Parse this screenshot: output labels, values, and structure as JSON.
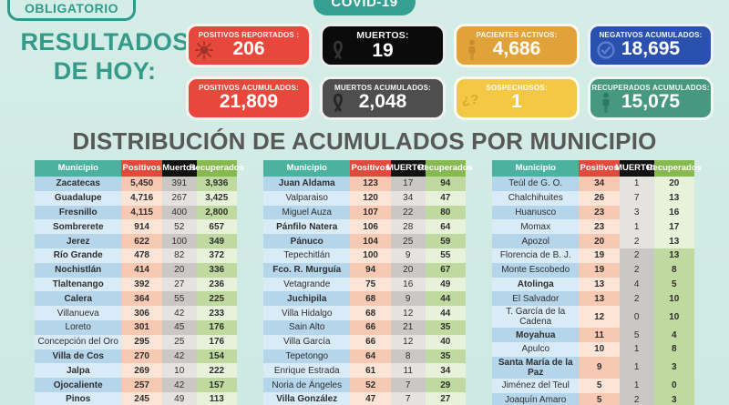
{
  "badges": {
    "obligatorio": "OBLIGATORIO",
    "covid": "COVID-19"
  },
  "header": {
    "results_line1": "RESULTADOS",
    "results_line2": "DE HOY:"
  },
  "section_title": "DISTRIBUCIÓN DE ACUMULADOS POR MUNICIPIO",
  "cards": [
    {
      "id": "positivos-reportados",
      "label": "POSITIVOS REPORTADOS :",
      "value": "206",
      "bg": "#e8483b",
      "icon": "virus",
      "icon_color": "#a53227"
    },
    {
      "id": "muertos",
      "label": "MUERTOS:",
      "value": "19",
      "bg": "#0b0b0b",
      "icon": "ribbon",
      "icon_color": "#343434",
      "label_size": "10.5px"
    },
    {
      "id": "pacientes-activos",
      "label": "PACIENTES ACTIVOS:",
      "value": "4,686",
      "bg": "#e2a23a",
      "icon": "person",
      "icon_color": "#c78c2c"
    },
    {
      "id": "negativos-acumulados",
      "label": "NEGATIVOS ACUMULADOS:",
      "value": "18,695",
      "bg": "#2b51ae",
      "icon": "check-circle",
      "icon_color": "#5c7ed2"
    },
    {
      "id": "positivos-acumulados",
      "label": "POSITIVOS ACUMULADOS:",
      "value": "21,809",
      "bg": "#e8483b"
    },
    {
      "id": "muertos-acumulados",
      "label": "MUERTOS ACUMULADOS:",
      "value": "2,048",
      "bg": "#4e4e4e",
      "icon": "ribbon",
      "icon_color": "#262626"
    },
    {
      "id": "sospechosos",
      "label": "SOSPECHOSOS:",
      "value": "1",
      "bg": "#f3c845",
      "icon": "question",
      "icon_color": "#d9ab21"
    },
    {
      "id": "recuperados-acumulados",
      "label": "RECUPERADOS ACUMULADOS:",
      "value": "15,075",
      "bg": "#46997e",
      "icon": "person",
      "icon_color": "#2d7a62"
    }
  ],
  "tables": [
    {
      "headers": [
        "Municipio",
        "Positivos",
        "Muertos",
        "Recuperados"
      ],
      "rows": [
        {
          "name": "Zacatecas",
          "pos": "5,450",
          "mue": "391",
          "rec": "3,936",
          "bold": true
        },
        {
          "name": "Guadalupe",
          "pos": "4,716",
          "mue": "267",
          "rec": "3,425",
          "bold": true
        },
        {
          "name": "Fresnillo",
          "pos": "4,115",
          "mue": "400",
          "rec": "2,800",
          "bold": true
        },
        {
          "name": "Sombrerete",
          "pos": "914",
          "mue": "52",
          "rec": "657",
          "bold": true
        },
        {
          "name": "Jerez",
          "pos": "622",
          "mue": "100",
          "rec": "349",
          "bold": true
        },
        {
          "name": "Río Grande",
          "pos": "478",
          "mue": "82",
          "rec": "372",
          "bold": true
        },
        {
          "name": "Nochistlán",
          "pos": "414",
          "mue": "20",
          "rec": "336",
          "bold": true
        },
        {
          "name": "Tlaltenango",
          "pos": "392",
          "mue": "27",
          "rec": "236",
          "bold": true
        },
        {
          "name": "Calera",
          "pos": "364",
          "mue": "55",
          "rec": "225",
          "bold": true
        },
        {
          "name": "Villanueva",
          "pos": "306",
          "mue": "42",
          "rec": "233",
          "bold": false
        },
        {
          "name": "Loreto",
          "pos": "301",
          "mue": "45",
          "rec": "176",
          "bold": false
        },
        {
          "name": "Concepción del Oro",
          "pos": "295",
          "mue": "25",
          "rec": "176",
          "bold": false
        },
        {
          "name": "Villa de Cos",
          "pos": "270",
          "mue": "42",
          "rec": "154",
          "bold": true
        },
        {
          "name": "Jalpa",
          "pos": "269",
          "mue": "10",
          "rec": "222",
          "bold": true
        },
        {
          "name": "Ojocaliente",
          "pos": "257",
          "mue": "42",
          "rec": "157",
          "bold": true
        },
        {
          "name": "Pinos",
          "pos": "245",
          "mue": "49",
          "rec": "113",
          "bold": true
        }
      ]
    },
    {
      "headers": [
        "Municipio",
        "Positivos",
        "MUERTOS",
        "Recuperados"
      ],
      "rows": [
        {
          "name": "Juan Aldama",
          "pos": "123",
          "mue": "17",
          "rec": "94",
          "bold": true
        },
        {
          "name": "Valparaiso",
          "pos": "120",
          "mue": "34",
          "rec": "47",
          "bold": false
        },
        {
          "name": "Miguel Auza",
          "pos": "107",
          "mue": "22",
          "rec": "80",
          "bold": false
        },
        {
          "name": "Pánfilo Natera",
          "pos": "106",
          "mue": "28",
          "rec": "64",
          "bold": true
        },
        {
          "name": "Pánuco",
          "pos": "104",
          "mue": "25",
          "rec": "59",
          "bold": true
        },
        {
          "name": "Tepechitlán",
          "pos": "100",
          "mue": "9",
          "rec": "55",
          "bold": false
        },
        {
          "name": "Fco. R. Murguía",
          "pos": "94",
          "mue": "20",
          "rec": "67",
          "bold": true
        },
        {
          "name": "Vetagrande",
          "pos": "75",
          "mue": "16",
          "rec": "49",
          "bold": false
        },
        {
          "name": "Juchipila",
          "pos": "68",
          "mue": "9",
          "rec": "44",
          "bold": true
        },
        {
          "name": "Villa Hidalgo",
          "pos": "68",
          "mue": "12",
          "rec": "44",
          "bold": false
        },
        {
          "name": "Sain Alto",
          "pos": "66",
          "mue": "21",
          "rec": "35",
          "bold": false
        },
        {
          "name": "Villa García",
          "pos": "66",
          "mue": "12",
          "rec": "40",
          "bold": false
        },
        {
          "name": "Tepetongo",
          "pos": "64",
          "mue": "8",
          "rec": "35",
          "bold": false
        },
        {
          "name": "Enrique Estrada",
          "pos": "61",
          "mue": "11",
          "rec": "34",
          "bold": false
        },
        {
          "name": "Noria de Ángeles",
          "pos": "52",
          "mue": "7",
          "rec": "29",
          "bold": false
        },
        {
          "name": "Villa González",
          "pos": "47",
          "mue": "7",
          "rec": "27",
          "bold": true
        }
      ]
    },
    {
      "headers": [
        "Municipio",
        "Positivos",
        "MUERTOS",
        "Recuperados"
      ],
      "rows": [
        {
          "name": "Teúl de G. O.",
          "pos": "34",
          "mue": "1",
          "rec": "20",
          "bold": false
        },
        {
          "name": "Chalchihuites",
          "pos": "26",
          "mue": "7",
          "rec": "13",
          "bold": false
        },
        {
          "name": "Huanusco",
          "pos": "23",
          "mue": "3",
          "rec": "16",
          "bold": false
        },
        {
          "name": "Momax",
          "pos": "23",
          "mue": "1",
          "rec": "17",
          "bold": false
        },
        {
          "name": "Apozol",
          "pos": "20",
          "mue": "2",
          "rec": "13",
          "bold": false
        },
        {
          "name": "Florencia de B. J.",
          "pos": "19",
          "mue": "2",
          "rec": "13",
          "bold": false
        },
        {
          "name": "Monte Escobedo",
          "pos": "19",
          "mue": "2",
          "rec": "8",
          "bold": false
        },
        {
          "name": "Atolinga",
          "pos": "13",
          "mue": "4",
          "rec": "5",
          "bold": true
        },
        {
          "name": "El Salvador",
          "pos": "13",
          "mue": "2",
          "rec": "10",
          "bold": false
        },
        {
          "name": "T. García de la Cadena",
          "pos": "12",
          "mue": "0",
          "rec": "10",
          "bold": false
        },
        {
          "name": "Moyahua",
          "pos": "11",
          "mue": "5",
          "rec": "4",
          "bold": true
        },
        {
          "name": "Apulco",
          "pos": "10",
          "mue": "1",
          "rec": "8",
          "bold": false
        },
        {
          "name": "Santa María de la Paz",
          "pos": "9",
          "mue": "1",
          "rec": "3",
          "bold": true
        },
        {
          "name": "Jiménez del Teul",
          "pos": "5",
          "mue": "1",
          "rec": "0",
          "bold": false
        },
        {
          "name": "Joaquín Amaro",
          "pos": "5",
          "mue": "2",
          "rec": "3",
          "bold": false
        }
      ]
    }
  ]
}
